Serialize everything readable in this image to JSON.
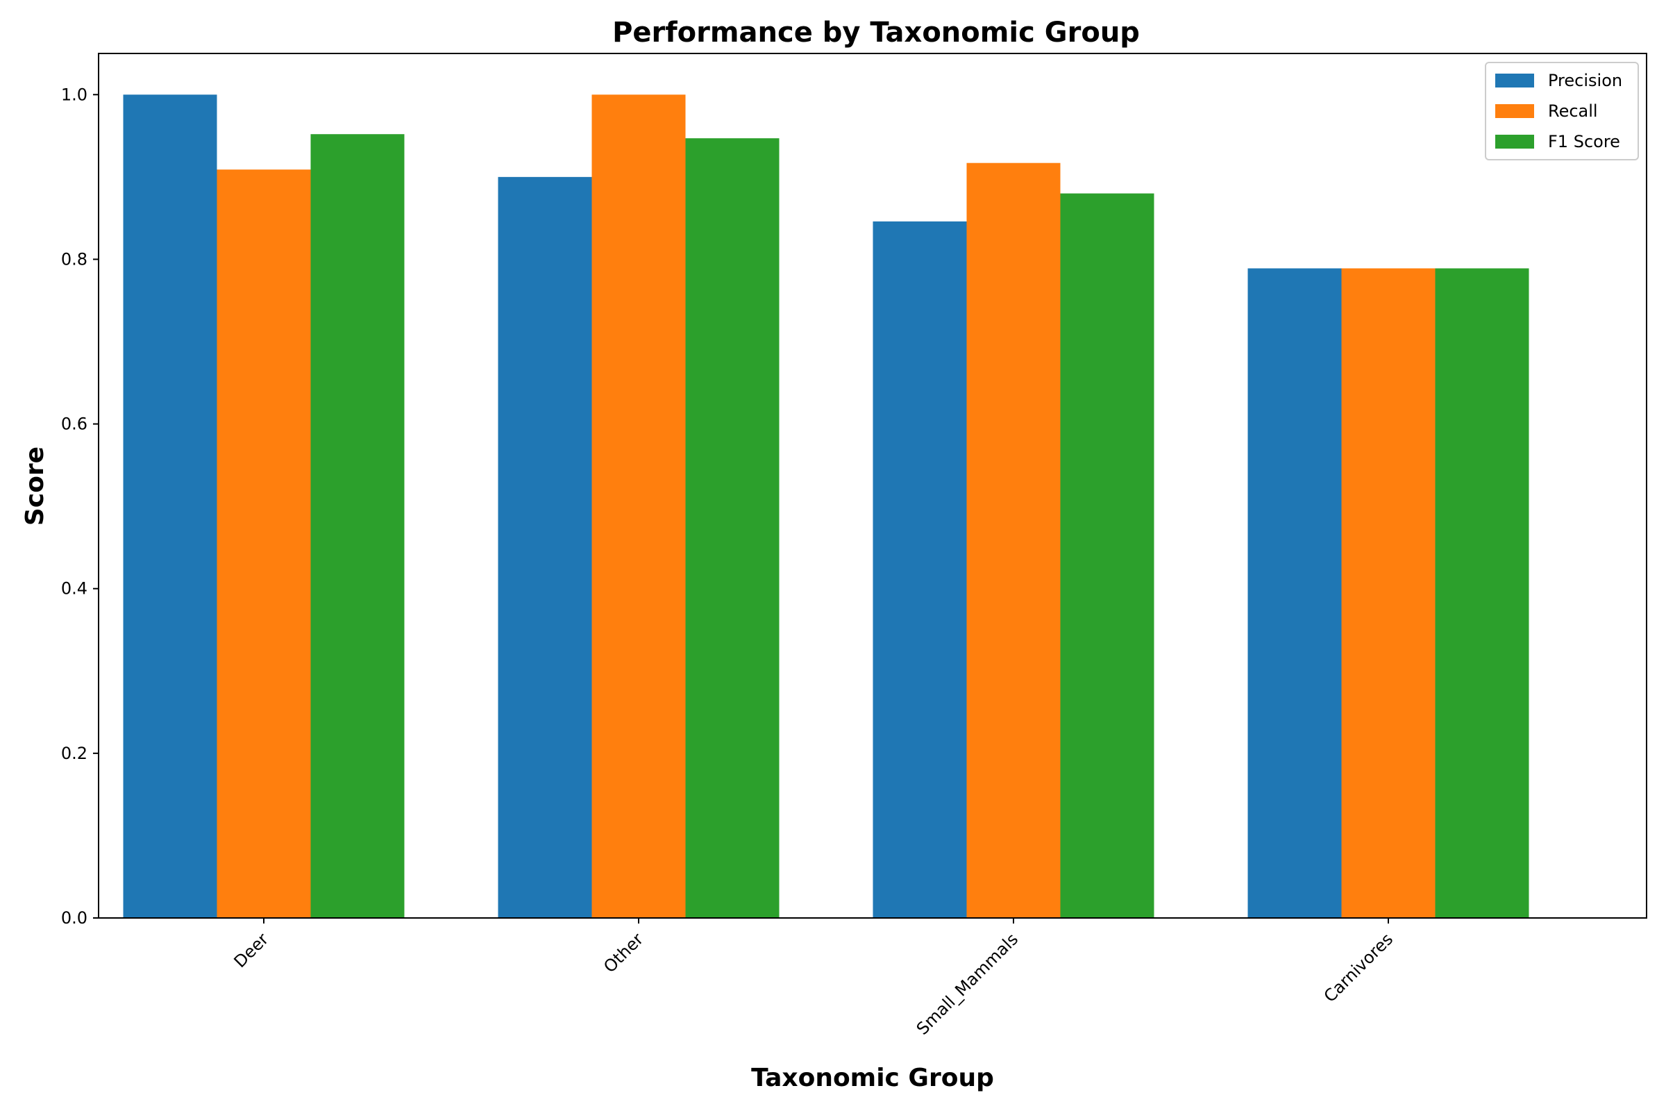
{
  "chart_data": {
    "type": "bar",
    "title": "Performance by Taxonomic Group",
    "xlabel": "Taxonomic Group",
    "ylabel": "Score",
    "categories": [
      "Deer",
      "Other",
      "Small_Mammals",
      "Carnivores"
    ],
    "series": [
      {
        "name": "Precision",
        "color": "#1f77b4",
        "values": [
          1.0,
          0.9,
          0.846,
          0.789
        ]
      },
      {
        "name": "Recall",
        "color": "#ff7f0e",
        "values": [
          0.909,
          1.0,
          0.917,
          0.789
        ]
      },
      {
        "name": "F1 Score",
        "color": "#2ca02c",
        "values": [
          0.952,
          0.947,
          0.88,
          0.789
        ]
      }
    ],
    "ylim": [
      0,
      1.05
    ],
    "yticks": [
      "0.0",
      "0.2",
      "0.4",
      "0.6",
      "0.8",
      "1.0"
    ],
    "grid": false,
    "legend_position": "top-right"
  }
}
